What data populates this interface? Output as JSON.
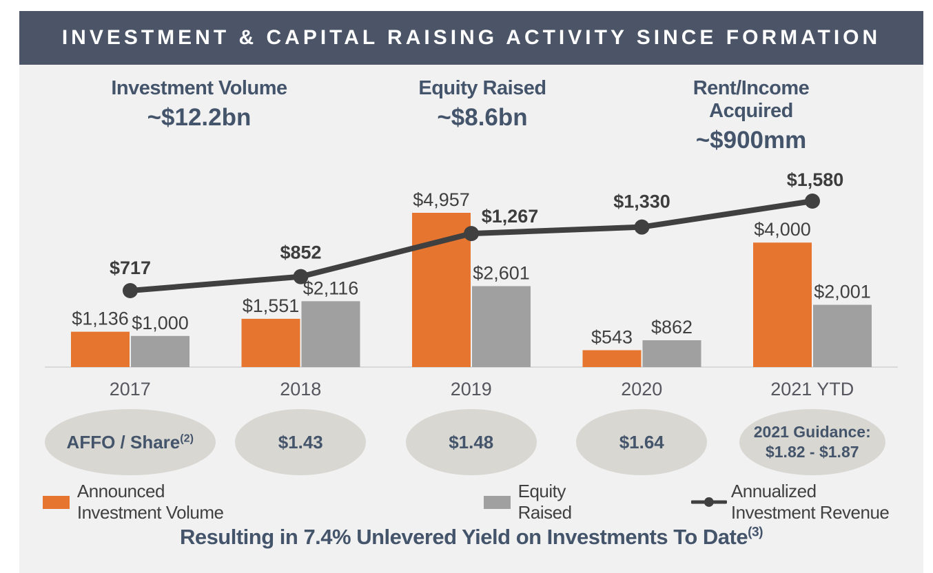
{
  "header": {
    "title": "INVESTMENT & CAPITAL RAISING ACTIVITY SINCE FORMATION"
  },
  "stats": [
    {
      "label": "Investment Volume",
      "value": "~$12.2bn"
    },
    {
      "label": "Equity Raised",
      "value": "~$8.6bn"
    },
    {
      "label": "Rent/Income Acquired",
      "value": "~$900mm"
    }
  ],
  "chart_data": {
    "type": "bar",
    "subtype": "grouped bars with overlaid line on secondary axis",
    "categories": [
      "2017",
      "2018",
      "2019",
      "2020",
      "2021 YTD"
    ],
    "series": [
      {
        "name": "Announced Investment Volume",
        "type": "bar",
        "color": "#E5752F",
        "values": [
          1136,
          1551,
          4957,
          543,
          4000
        ],
        "labels": [
          "$1,136",
          "$1,551",
          "$4,957",
          "$543",
          "$4,000"
        ]
      },
      {
        "name": "Equity Raised",
        "type": "bar",
        "color": "#A0A0A0",
        "values": [
          1000,
          2116,
          2601,
          862,
          2001
        ],
        "labels": [
          "$1,000",
          "$2,116",
          "$2,601",
          "$862",
          "$2,001"
        ]
      },
      {
        "name": "Annualized Investment Revenue",
        "type": "line",
        "color": "#404040",
        "values": [
          717,
          852,
          1267,
          1330,
          1580
        ],
        "labels": [
          "$717",
          "$852",
          "$1,267",
          "$1,330",
          "$1,580"
        ]
      }
    ],
    "title": "",
    "xlabel": "",
    "ylabel": "",
    "axis_labels_visible": false,
    "gridlines": false,
    "legend_position": "bottom",
    "bar_axis_range": [
      0,
      5500
    ],
    "line_axis_range": [
      0,
      1800
    ]
  },
  "bubbles": [
    {
      "text": "AFFO / Share",
      "sup": "(2)"
    },
    {
      "text": "$1.43"
    },
    {
      "text": "$1.48"
    },
    {
      "text": "$1.64"
    },
    {
      "line1": "2021 Guidance:",
      "line2": "$1.82 - $1.87"
    }
  ],
  "footer": {
    "text": "Resulting in 7.4% Unlevered Yield on Investments To Date",
    "sup": "(3)"
  },
  "colors": {
    "header_background": "#4B5567",
    "panel_background": "#F1F1F2",
    "heading_text": "#44546A",
    "bar_orange": "#E5752F",
    "bar_gray": "#A0A0A0",
    "line_dark": "#404040",
    "bubble_fill": "#D8D7D2",
    "baseline": "#D9D9D9"
  }
}
